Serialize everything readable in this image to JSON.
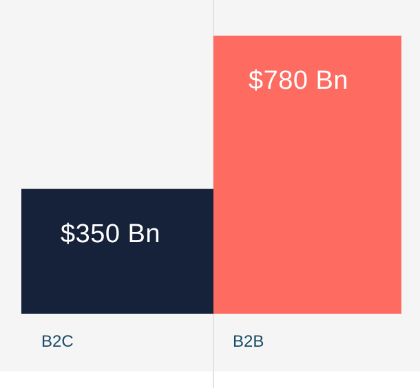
{
  "chart_data": {
    "type": "bar",
    "title": "",
    "xlabel": "",
    "ylabel": "",
    "categories": [
      "B2C",
      "B2B"
    ],
    "values": [
      350,
      780
    ],
    "data_labels": [
      "$350 Bn",
      "$780 Bn"
    ],
    "ylim": [
      0,
      880
    ],
    "unit": "$ Bn",
    "grid": false,
    "legend": "none"
  },
  "colors": {
    "bars": [
      "#16213a",
      "#fd6b61"
    ],
    "category_text": "#1b4c66",
    "panel": "#f5f5f5",
    "divider": "#e2e2e2"
  }
}
